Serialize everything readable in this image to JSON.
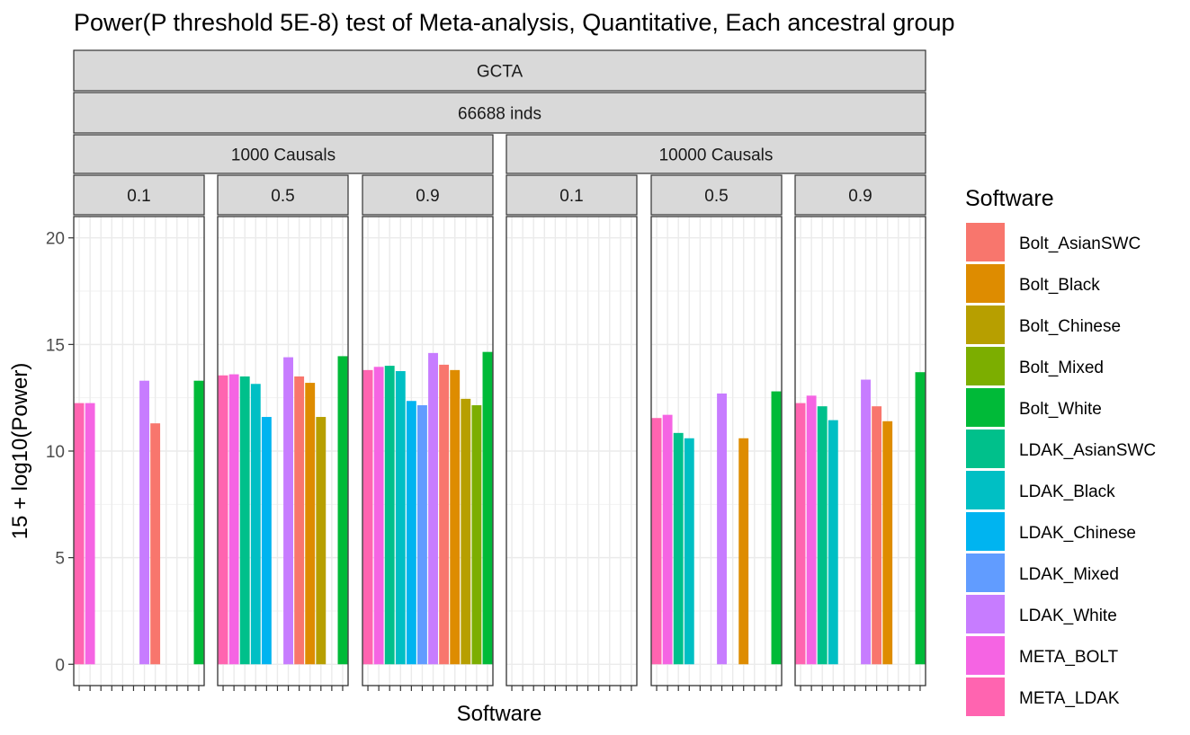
{
  "chart_data": {
    "type": "bar",
    "title": "Power(P threshold 5E-8) test of Meta-analysis, Quantitative, Each ancestral group",
    "xlabel": "Software",
    "ylabel": "15 + log10(Power)",
    "ylim": [
      -1,
      21
    ],
    "yticks": [
      "0",
      "5",
      "10",
      "15",
      "20"
    ],
    "grid": true,
    "facets": {
      "level1": "GCTA",
      "level2": "66688 inds",
      "causal_groups": [
        "1000 Causals",
        "10000 Causals"
      ],
      "heritabilities": [
        "0.1",
        "0.5",
        "0.9"
      ]
    },
    "legend": {
      "title": "Software",
      "position": "right",
      "entries": [
        {
          "name": "Bolt_AsianSWC",
          "color": "#F8766D"
        },
        {
          "name": "Bolt_Black",
          "color": "#DE8C00"
        },
        {
          "name": "Bolt_Chinese",
          "color": "#B79F00"
        },
        {
          "name": "Bolt_Mixed",
          "color": "#7CAE00"
        },
        {
          "name": "Bolt_White",
          "color": "#00BA38"
        },
        {
          "name": "LDAK_AsianSWC",
          "color": "#00C08B"
        },
        {
          "name": "LDAK_Black",
          "color": "#00BFC4"
        },
        {
          "name": "LDAK_Chinese",
          "color": "#00B4F0"
        },
        {
          "name": "LDAK_Mixed",
          "color": "#619CFF"
        },
        {
          "name": "LDAK_White",
          "color": "#C77CFF"
        },
        {
          "name": "META_BOLT",
          "color": "#F564E3"
        },
        {
          "name": "META_LDAK",
          "color": "#FF64B0"
        }
      ]
    },
    "x_order": [
      "META_LDAK",
      "META_BOLT",
      "LDAK_AsianSWC",
      "LDAK_Black",
      "LDAK_Chinese",
      "LDAK_Mixed",
      "LDAK_White",
      "Bolt_AsianSWC",
      "Bolt_Black",
      "Bolt_Chinese",
      "Bolt_Mixed",
      "Bolt_White"
    ],
    "panels": [
      {
        "causals": "1000 Causals",
        "h2": "0.1",
        "values": [
          12.25,
          12.25,
          null,
          null,
          null,
          null,
          13.3,
          11.3,
          null,
          null,
          null,
          13.3
        ]
      },
      {
        "causals": "1000 Causals",
        "h2": "0.5",
        "values": [
          13.55,
          13.6,
          13.5,
          13.15,
          11.6,
          null,
          14.4,
          13.5,
          13.2,
          11.6,
          null,
          14.45
        ]
      },
      {
        "causals": "1000 Causals",
        "h2": "0.9",
        "values": [
          13.8,
          13.95,
          14.0,
          13.75,
          12.35,
          12.15,
          14.6,
          14.05,
          13.8,
          12.45,
          12.15,
          14.65
        ]
      },
      {
        "causals": "10000 Causals",
        "h2": "0.1",
        "values": [
          null,
          null,
          null,
          null,
          null,
          null,
          null,
          null,
          null,
          null,
          null,
          null
        ]
      },
      {
        "causals": "10000 Causals",
        "h2": "0.5",
        "values": [
          11.55,
          11.7,
          10.85,
          10.6,
          null,
          null,
          12.7,
          null,
          10.6,
          null,
          null,
          12.8
        ]
      },
      {
        "causals": "10000 Causals",
        "h2": "0.9",
        "values": [
          12.25,
          12.6,
          12.1,
          11.45,
          null,
          null,
          13.35,
          12.1,
          11.4,
          null,
          null,
          13.7
        ]
      }
    ]
  }
}
